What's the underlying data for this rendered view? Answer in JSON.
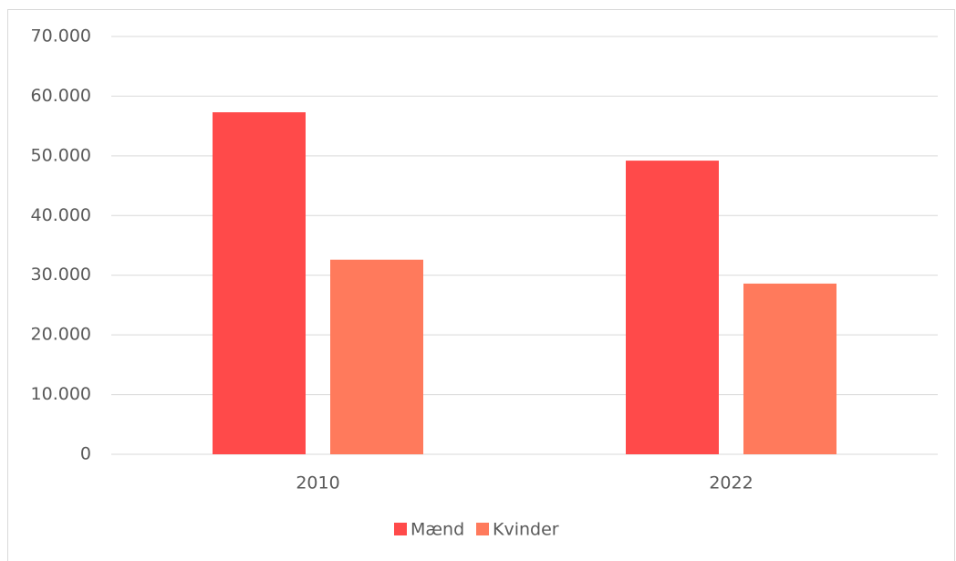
{
  "chart_data": {
    "type": "bar",
    "categories": [
      "2010",
      "2022"
    ],
    "series": [
      {
        "name": "Mænd",
        "color": "#ff4a4a",
        "values": [
          57300,
          49200
        ]
      },
      {
        "name": "Kvinder",
        "color": "#ff7a5c",
        "values": [
          32600,
          28600
        ]
      }
    ],
    "ylim": [
      0,
      70000
    ],
    "yticks": [
      0,
      {
        "value": 10000,
        "label": "10.000"
      },
      {
        "value": 20000,
        "label": "20.000"
      },
      {
        "value": 30000,
        "label": "30.000"
      },
      {
        "value": 40000,
        "label": "40.000"
      },
      {
        "value": 50000,
        "label": "50.000"
      },
      {
        "value": 60000,
        "label": "60.000"
      },
      {
        "value": 70000,
        "label": "70.000"
      }
    ],
    "grid": true,
    "legend": "bottom"
  }
}
